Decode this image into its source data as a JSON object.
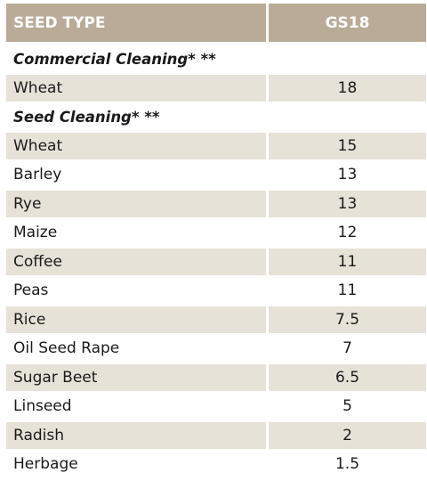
{
  "table": {
    "header": {
      "seed_type": "SEED TYPE",
      "gs18": "GS18"
    },
    "sections": [
      {
        "title": "Commercial Cleaning* **",
        "rows": [
          {
            "seed": "Wheat",
            "value": "18"
          }
        ]
      },
      {
        "title": "Seed Cleaning* **",
        "rows": [
          {
            "seed": "Wheat",
            "value": "15"
          },
          {
            "seed": "Barley",
            "value": "13"
          },
          {
            "seed": "Rye",
            "value": "13"
          },
          {
            "seed": "Maize",
            "value": "12"
          },
          {
            "seed": "Coffee",
            "value": "11"
          },
          {
            "seed": "Peas",
            "value": "11"
          },
          {
            "seed": "Rice",
            "value": "7.5"
          },
          {
            "seed": "Oil Seed Rape",
            "value": "7"
          },
          {
            "seed": "Sugar Beet",
            "value": "6.5"
          },
          {
            "seed": "Linseed",
            "value": "5"
          },
          {
            "seed": "Radish",
            "value": "2"
          },
          {
            "seed": "Herbage",
            "value": "1.5"
          }
        ]
      }
    ],
    "colors": {
      "header_bg": "#b9ab98",
      "shade_bg": "#e7e2d8",
      "header_text": "#ffffff"
    }
  }
}
